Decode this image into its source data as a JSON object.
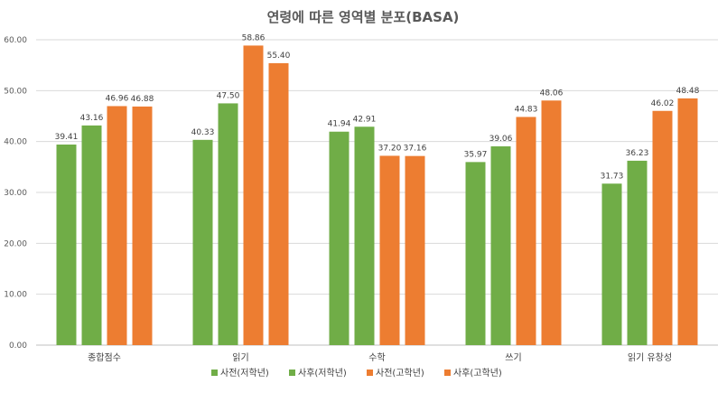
{
  "chart_data": {
    "type": "bar",
    "title": "연령에 따른 영역별 분포(BASA)",
    "categories": [
      "종합점수",
      "읽기",
      "수학",
      "쓰기",
      "읽기 유창성"
    ],
    "series": [
      {
        "name": "사전(저학년)",
        "color": "#70ad47",
        "values": [
          39.41,
          40.33,
          41.94,
          35.97,
          31.73
        ]
      },
      {
        "name": "사후(저학년)",
        "color": "#70ad47",
        "values": [
          43.16,
          47.5,
          42.91,
          39.06,
          36.23
        ]
      },
      {
        "name": "사전(고학년)",
        "color": "#ed7d31",
        "values": [
          46.96,
          58.86,
          37.2,
          44.83,
          46.02
        ]
      },
      {
        "name": "사후(고학년)",
        "color": "#ed7d31",
        "values": [
          46.88,
          55.4,
          37.16,
          48.06,
          48.48
        ]
      }
    ],
    "ylim": [
      0,
      60
    ],
    "yticks": [
      "0.00",
      "10.00",
      "20.00",
      "30.00",
      "40.00",
      "50.00",
      "60.00"
    ],
    "legend_position": "bottom",
    "xlabel": "",
    "ylabel": ""
  }
}
